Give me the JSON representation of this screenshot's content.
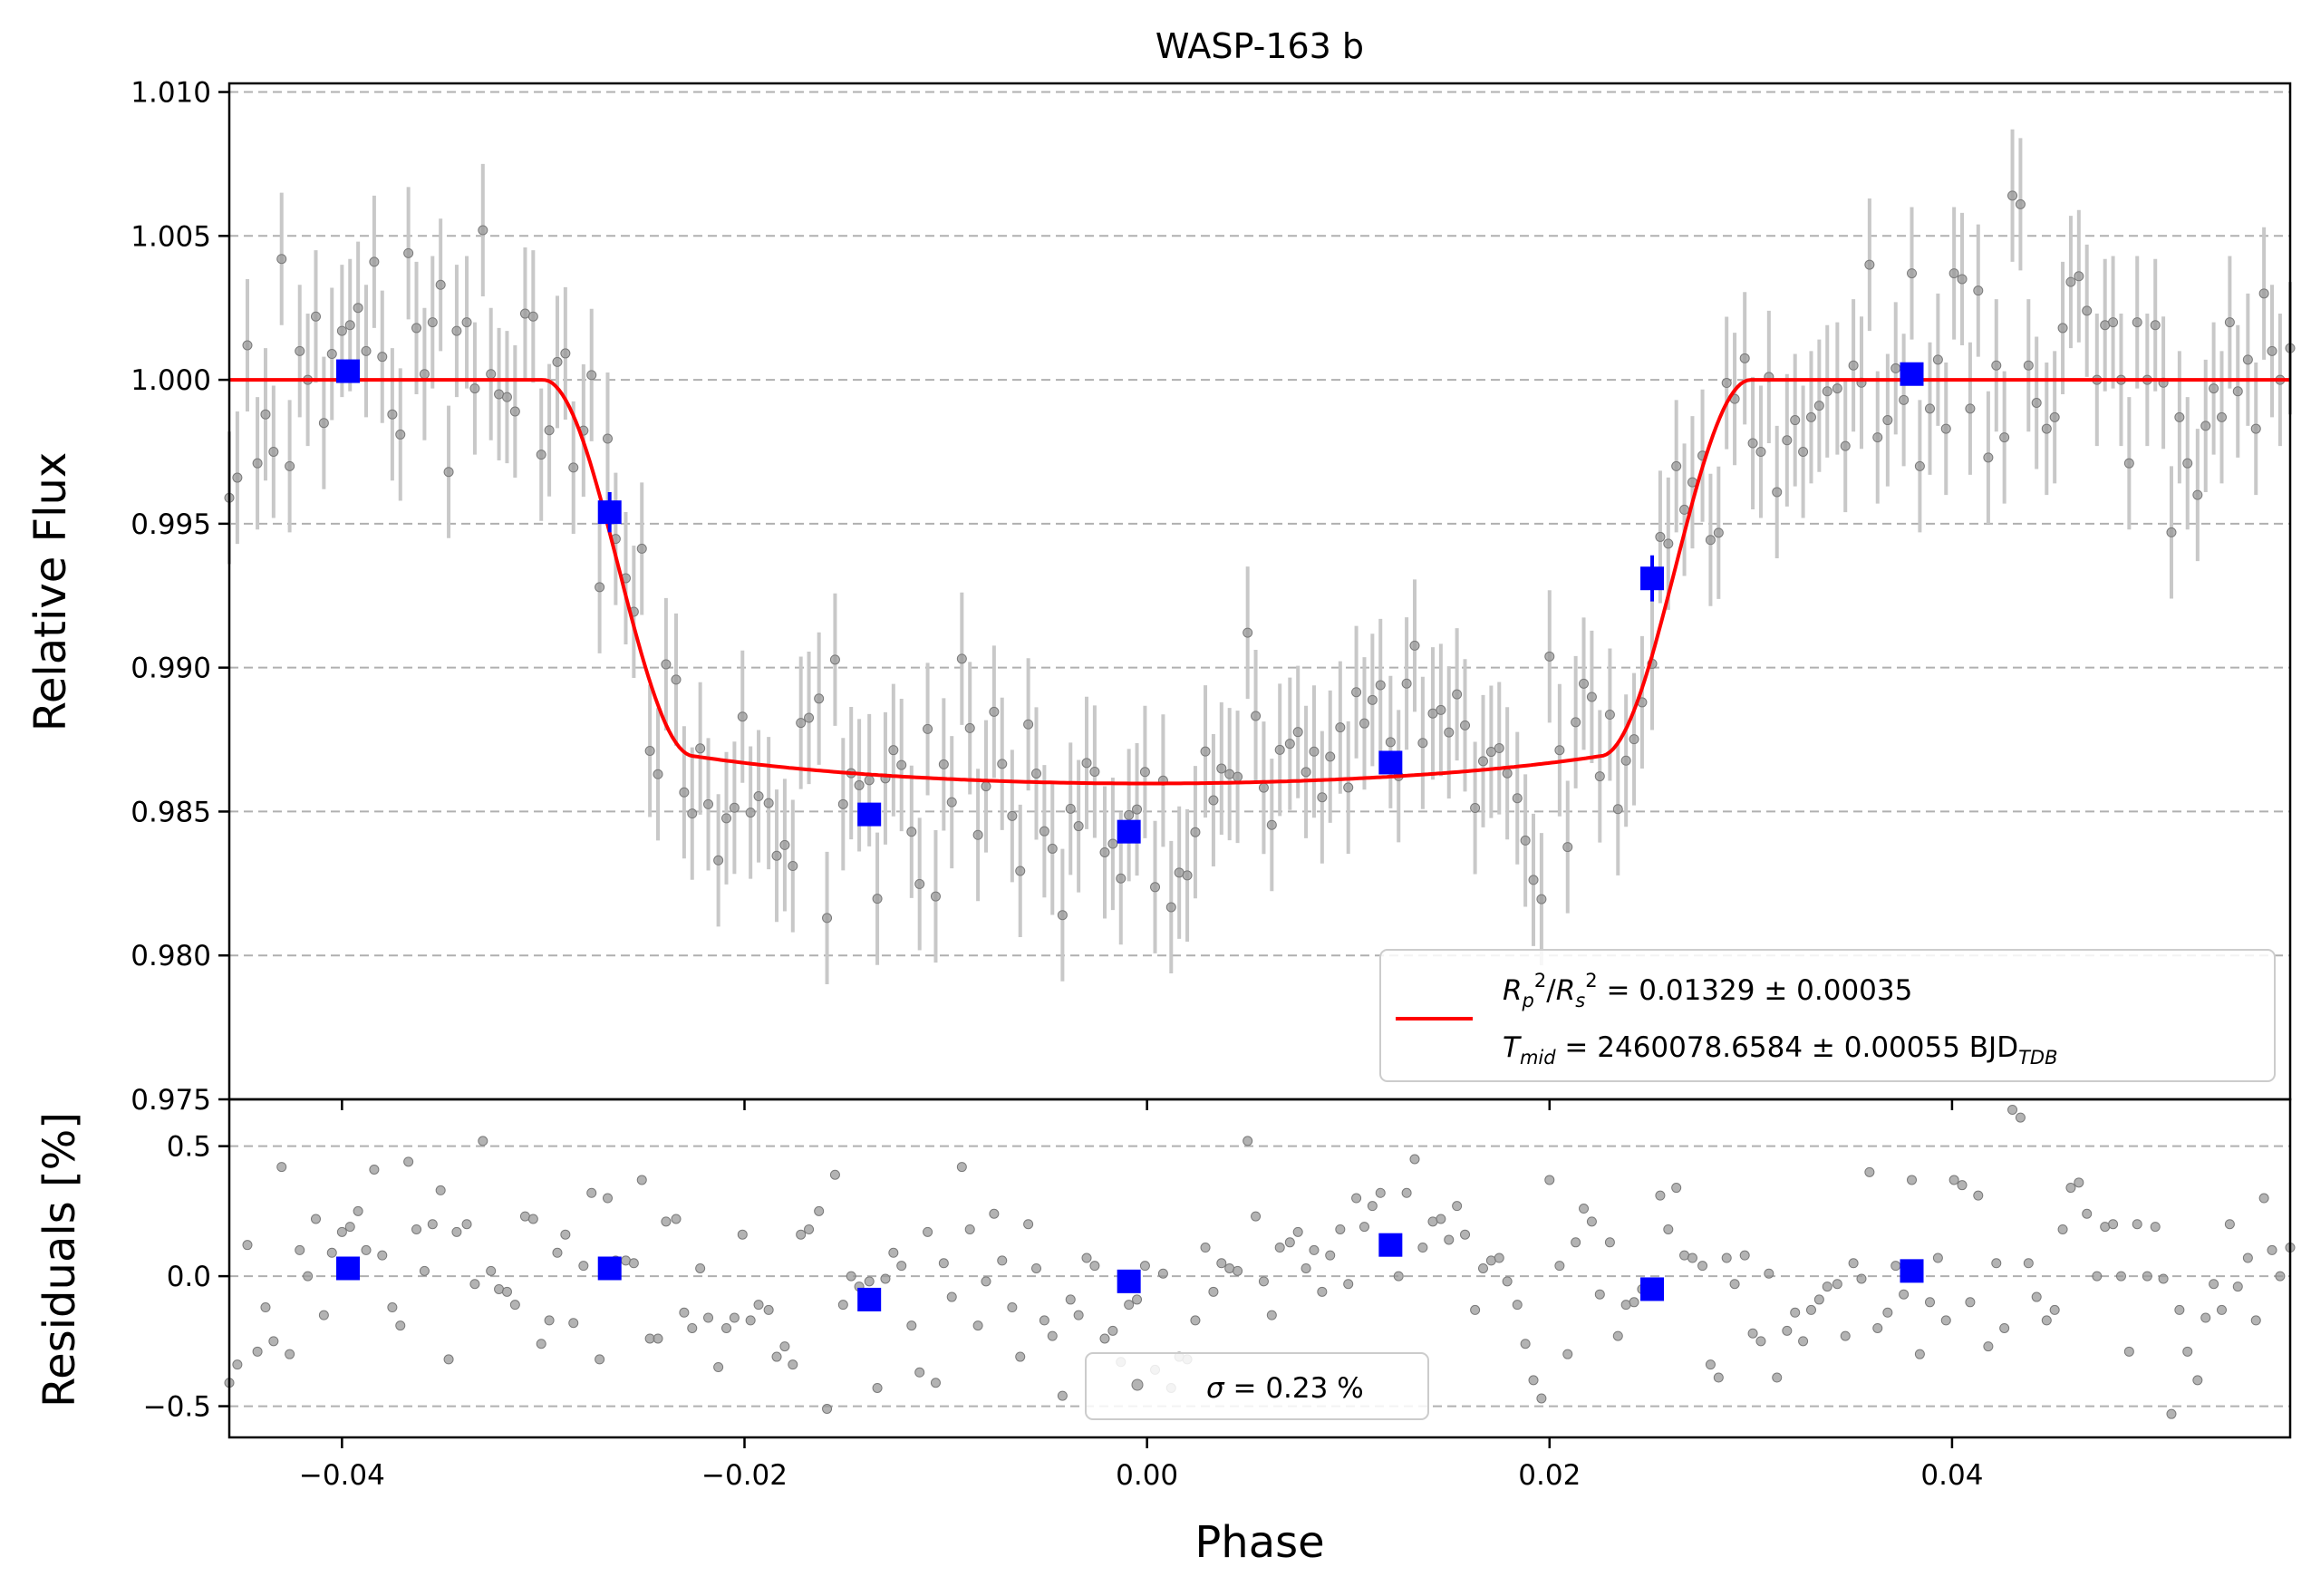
{
  "chart_data": [
    {
      "type": "scatter",
      "panel": "top",
      "title": "WASP-163 b",
      "xlabel": "",
      "ylabel": "Relative Flux",
      "xlim": [
        -0.0456,
        0.0568
      ],
      "ylim": [
        0.975,
        1.0103
      ],
      "yticks": [
        0.975,
        0.98,
        0.985,
        0.99,
        0.995,
        1.0,
        1.005,
        1.01
      ],
      "ytick_labels": [
        "0.975",
        "0.980",
        "0.985",
        "0.990",
        "0.995",
        "1.000",
        "1.005",
        "1.010"
      ],
      "grid": "y-dashed",
      "transit_model": {
        "depth": 0.01329,
        "t_mid_phase": 0.0,
        "half_total_duration": 0.03,
        "half_full_duration": 0.0225,
        "limb_darkening": 0.2
      },
      "binned": {
        "x": [
          -0.0397,
          -0.0267,
          -0.0138,
          -0.0009,
          0.0121,
          0.0251,
          0.038
        ],
        "y": [
          1.0003,
          0.9954,
          0.9849,
          0.9843,
          0.9867,
          0.9931,
          1.0002
        ],
        "err": [
          0.0004,
          0.0007,
          0.0004,
          0.0004,
          0.0004,
          0.0008,
          0.0004
        ]
      },
      "unbinned_error": 0.0023,
      "legend": {
        "position": "lower-right",
        "line1": "R_p²/R_s² = 0.01329 ± 0.00035",
        "line2": "T_mid = 2460078.6584 ± 0.00055 BJD_TDB",
        "line1_html": "<tspan font-style='italic'>R</tspan><tspan font-style='italic' font-size='21' dy='8'>p</tspan><tspan font-size='21' dy='-22'>2</tspan><tspan dy='14'>/</tspan><tspan font-style='italic'>R</tspan><tspan font-style='italic' font-size='21' dy='8'>s</tspan><tspan font-size='21' dy='-22'>2</tspan><tspan dy='14'> = 0.01329 ± 0.00035</tspan>",
        "line2_html": "<tspan font-style='italic'>T</tspan><tspan font-style='italic' font-size='21' dy='8'>mid</tspan><tspan dy='-8'> = 2460078.6584 ± 0.00055 BJD</tspan><tspan font-style='italic' font-size='21' dy='8'>TDB</tspan>"
      }
    },
    {
      "type": "scatter",
      "panel": "bottom",
      "xlabel": "Phase",
      "ylabel": "Residuals [%]",
      "xlim": [
        -0.0456,
        0.0568
      ],
      "ylim": [
        -0.62,
        0.68
      ],
      "xticks": [
        -0.04,
        -0.02,
        0.0,
        0.02,
        0.04
      ],
      "xtick_labels": [
        "−0.04",
        "−0.02",
        "0.00",
        "0.02",
        "0.04"
      ],
      "yticks": [
        -0.5,
        0.0,
        0.5
      ],
      "ytick_labels": [
        "−0.5",
        "0.0",
        "0.5"
      ],
      "grid": "y-dashed",
      "binned": {
        "x": [
          -0.0397,
          -0.0267,
          -0.0138,
          -0.0009,
          0.0121,
          0.0251,
          0.038
        ],
        "y": [
          0.03,
          0.03,
          -0.09,
          -0.02,
          0.12,
          -0.05,
          0.02
        ]
      },
      "legend": {
        "position": "lower-center",
        "text": "σ = 0.23 %",
        "text_html": "<tspan font-style='italic'>σ</tspan><tspan> = 0.23 %</tspan>"
      }
    }
  ],
  "residual_points": [
    [
      -0.0456,
      -0.41
    ],
    [
      -0.0452,
      -0.34
    ],
    [
      -0.0447,
      0.12
    ],
    [
      -0.0442,
      -0.29
    ],
    [
      -0.0438,
      -0.12
    ],
    [
      -0.0434,
      -0.25
    ],
    [
      -0.043,
      0.42
    ],
    [
      -0.0426,
      -0.3
    ],
    [
      -0.0421,
      0.1
    ],
    [
      -0.0417,
      0.0
    ],
    [
      -0.0413,
      0.22
    ],
    [
      -0.0409,
      -0.15
    ],
    [
      -0.0405,
      0.09
    ],
    [
      -0.04,
      0.17
    ],
    [
      -0.0396,
      0.19
    ],
    [
      -0.0392,
      0.25
    ],
    [
      -0.0388,
      0.1
    ],
    [
      -0.0384,
      0.41
    ],
    [
      -0.038,
      0.08
    ],
    [
      -0.0375,
      -0.12
    ],
    [
      -0.0371,
      -0.19
    ],
    [
      -0.0367,
      0.44
    ],
    [
      -0.0363,
      0.18
    ],
    [
      -0.0359,
      0.02
    ],
    [
      -0.0355,
      0.2
    ],
    [
      -0.0351,
      0.33
    ],
    [
      -0.0347,
      -0.32
    ],
    [
      -0.0343,
      0.17
    ],
    [
      -0.0338,
      0.2
    ],
    [
      -0.0334,
      -0.03
    ],
    [
      -0.033,
      0.52
    ],
    [
      -0.0326,
      0.02
    ],
    [
      -0.0322,
      -0.05
    ],
    [
      -0.0318,
      -0.06
    ],
    [
      -0.0314,
      -0.11
    ],
    [
      -0.0309,
      0.23
    ],
    [
      -0.0305,
      0.22
    ],
    [
      -0.0301,
      -0.26
    ],
    [
      -0.0297,
      -0.17
    ],
    [
      -0.0293,
      0.09
    ],
    [
      -0.0289,
      0.16
    ],
    [
      -0.0285,
      -0.18
    ],
    [
      -0.028,
      0.04
    ],
    [
      -0.0276,
      0.32
    ],
    [
      -0.0272,
      -0.32
    ],
    [
      -0.0268,
      0.3
    ],
    [
      -0.0264,
      0.06
    ],
    [
      -0.0259,
      0.06
    ],
    [
      -0.0255,
      0.05
    ],
    [
      -0.0251,
      0.37
    ],
    [
      -0.0247,
      -0.24
    ],
    [
      -0.0243,
      -0.24
    ],
    [
      -0.0239,
      0.21
    ],
    [
      -0.0234,
      0.22
    ],
    [
      -0.023,
      -0.14
    ],
    [
      -0.0226,
      -0.2
    ],
    [
      -0.0222,
      0.03
    ],
    [
      -0.0218,
      -0.16
    ],
    [
      -0.0213,
      -0.35
    ],
    [
      -0.0209,
      -0.2
    ],
    [
      -0.0205,
      -0.16
    ],
    [
      -0.0201,
      0.16
    ],
    [
      -0.0197,
      -0.17
    ],
    [
      -0.0193,
      -0.11
    ],
    [
      -0.0188,
      -0.13
    ],
    [
      -0.0184,
      -0.31
    ],
    [
      -0.018,
      -0.27
    ],
    [
      -0.0176,
      -0.34
    ],
    [
      -0.0172,
      0.16
    ],
    [
      -0.0168,
      0.18
    ],
    [
      -0.0163,
      0.25
    ],
    [
      -0.0159,
      -0.51
    ],
    [
      -0.0155,
      0.39
    ],
    [
      -0.0151,
      -0.11
    ],
    [
      -0.0147,
      0.0
    ],
    [
      -0.0143,
      -0.04
    ],
    [
      -0.0138,
      -0.02
    ],
    [
      -0.0134,
      -0.43
    ],
    [
      -0.013,
      -0.01
    ],
    [
      -0.0126,
      0.09
    ],
    [
      -0.0122,
      0.04
    ],
    [
      -0.0117,
      -0.19
    ],
    [
      -0.0113,
      -0.37
    ],
    [
      -0.0109,
      0.17
    ],
    [
      -0.0105,
      -0.41
    ],
    [
      -0.0101,
      0.05
    ],
    [
      -0.0097,
      -0.08
    ],
    [
      -0.0092,
      0.42
    ],
    [
      -0.0088,
      0.18
    ],
    [
      -0.0084,
      -0.19
    ],
    [
      -0.008,
      -0.02
    ],
    [
      -0.0076,
      0.24
    ],
    [
      -0.0072,
      0.06
    ],
    [
      -0.0067,
      -0.12
    ],
    [
      -0.0063,
      -0.31
    ],
    [
      -0.0059,
      0.2
    ],
    [
      -0.0055,
      0.03
    ],
    [
      -0.0051,
      -0.17
    ],
    [
      -0.0047,
      -0.23
    ],
    [
      -0.0042,
      -0.46
    ],
    [
      -0.0038,
      -0.09
    ],
    [
      -0.0034,
      -0.15
    ],
    [
      -0.003,
      0.07
    ],
    [
      -0.0026,
      0.04
    ],
    [
      -0.0021,
      -0.24
    ],
    [
      -0.0017,
      -0.21
    ],
    [
      -0.0013,
      -0.33
    ],
    [
      -0.0009,
      -0.11
    ],
    [
      -0.0005,
      -0.09
    ],
    [
      -0.0001,
      0.04
    ],
    [
      0.0004,
      -0.36
    ],
    [
      0.0008,
      0.01
    ],
    [
      0.0012,
      -0.43
    ],
    [
      0.0016,
      -0.31
    ],
    [
      0.002,
      -0.32
    ],
    [
      0.0024,
      -0.17
    ],
    [
      0.0029,
      0.11
    ],
    [
      0.0033,
      -0.06
    ],
    [
      0.0037,
      0.05
    ],
    [
      0.0041,
      0.03
    ],
    [
      0.0045,
      0.02
    ],
    [
      0.005,
      0.52
    ],
    [
      0.0054,
      0.23
    ],
    [
      0.0058,
      -0.02
    ],
    [
      0.0062,
      -0.15
    ],
    [
      0.0066,
      0.11
    ],
    [
      0.0071,
      0.13
    ],
    [
      0.0075,
      0.17
    ],
    [
      0.0079,
      0.03
    ],
    [
      0.0083,
      0.1
    ],
    [
      0.0087,
      -0.06
    ],
    [
      0.0091,
      0.08
    ],
    [
      0.0096,
      0.18
    ],
    [
      0.01,
      -0.03
    ],
    [
      0.0104,
      0.3
    ],
    [
      0.0108,
      0.19
    ],
    [
      0.0112,
      0.27
    ],
    [
      0.0116,
      0.32
    ],
    [
      0.0121,
      0.12
    ],
    [
      0.0125,
      0.0
    ],
    [
      0.0129,
      0.32
    ],
    [
      0.0133,
      0.45
    ],
    [
      0.0137,
      0.11
    ],
    [
      0.0142,
      0.21
    ],
    [
      0.0146,
      0.22
    ],
    [
      0.015,
      0.14
    ],
    [
      0.0154,
      0.27
    ],
    [
      0.0158,
      0.16
    ],
    [
      0.0163,
      -0.13
    ],
    [
      0.0167,
      0.03
    ],
    [
      0.0171,
      0.06
    ],
    [
      0.0175,
      0.07
    ],
    [
      0.0179,
      -0.02
    ],
    [
      0.0184,
      -0.11
    ],
    [
      0.0188,
      -0.26
    ],
    [
      0.0192,
      -0.4
    ],
    [
      0.0196,
      -0.47
    ],
    [
      0.02,
      0.37
    ],
    [
      0.0205,
      0.04
    ],
    [
      0.0209,
      -0.3
    ],
    [
      0.0213,
      0.13
    ],
    [
      0.0217,
      0.26
    ],
    [
      0.0221,
      0.21
    ],
    [
      0.0225,
      -0.07
    ],
    [
      0.023,
      0.13
    ],
    [
      0.0234,
      -0.23
    ],
    [
      0.0238,
      -0.11
    ],
    [
      0.0242,
      -0.1
    ],
    [
      0.0246,
      -0.05
    ],
    [
      0.0251,
      -0.03
    ],
    [
      0.0255,
      0.31
    ],
    [
      0.0259,
      0.18
    ],
    [
      0.0263,
      0.34
    ],
    [
      0.0267,
      0.08
    ],
    [
      0.0271,
      0.07
    ],
    [
      0.0276,
      0.04
    ],
    [
      0.028,
      -0.34
    ],
    [
      0.0284,
      -0.39
    ],
    [
      0.0288,
      0.07
    ],
    [
      0.0292,
      -0.03
    ],
    [
      0.0297,
      0.08
    ],
    [
      0.0301,
      -0.22
    ],
    [
      0.0305,
      -0.25
    ],
    [
      0.0309,
      0.01
    ],
    [
      0.0313,
      -0.39
    ],
    [
      0.0318,
      -0.21
    ],
    [
      0.0322,
      -0.14
    ],
    [
      0.0326,
      -0.25
    ],
    [
      0.033,
      -0.13
    ],
    [
      0.0334,
      -0.09
    ],
    [
      0.0338,
      -0.04
    ],
    [
      0.0343,
      -0.03
    ],
    [
      0.0347,
      -0.23
    ],
    [
      0.0351,
      0.05
    ],
    [
      0.0355,
      -0.01
    ],
    [
      0.0359,
      0.4
    ],
    [
      0.0363,
      -0.2
    ],
    [
      0.0368,
      -0.14
    ],
    [
      0.0372,
      0.04
    ],
    [
      0.0376,
      -0.07
    ],
    [
      0.038,
      0.37
    ],
    [
      0.0384,
      -0.3
    ],
    [
      0.0389,
      -0.1
    ],
    [
      0.0393,
      0.07
    ],
    [
      0.0397,
      -0.17
    ],
    [
      0.0401,
      0.37
    ],
    [
      0.0405,
      0.35
    ],
    [
      0.0409,
      -0.1
    ],
    [
      0.0413,
      0.31
    ],
    [
      0.0418,
      -0.27
    ],
    [
      0.0422,
      0.05
    ],
    [
      0.0426,
      -0.2
    ],
    [
      0.043,
      0.64
    ],
    [
      0.0434,
      0.61
    ],
    [
      0.0438,
      0.05
    ],
    [
      0.0442,
      -0.08
    ],
    [
      0.0447,
      -0.17
    ],
    [
      0.0451,
      -0.13
    ],
    [
      0.0455,
      0.18
    ],
    [
      0.0459,
      0.34
    ],
    [
      0.0463,
      0.36
    ],
    [
      0.0467,
      0.24
    ],
    [
      0.0472,
      0.0
    ],
    [
      0.0476,
      0.19
    ],
    [
      0.048,
      0.2
    ],
    [
      0.0484,
      0.0
    ],
    [
      0.0488,
      -0.29
    ],
    [
      0.0492,
      0.2
    ],
    [
      0.0497,
      0.0
    ],
    [
      0.0501,
      0.19
    ],
    [
      0.0505,
      -0.01
    ],
    [
      0.0509,
      -0.53
    ],
    [
      0.0513,
      -0.13
    ],
    [
      0.0517,
      -0.29
    ],
    [
      0.0522,
      -0.4
    ],
    [
      0.0526,
      -0.16
    ],
    [
      0.053,
      -0.03
    ],
    [
      0.0534,
      -0.13
    ],
    [
      0.0538,
      0.2
    ],
    [
      0.0542,
      -0.04
    ],
    [
      0.0547,
      0.07
    ],
    [
      0.0551,
      -0.17
    ],
    [
      0.0555,
      0.3
    ],
    [
      0.0559,
      0.1
    ],
    [
      0.0563,
      0.0
    ],
    [
      0.0568,
      0.11
    ]
  ]
}
